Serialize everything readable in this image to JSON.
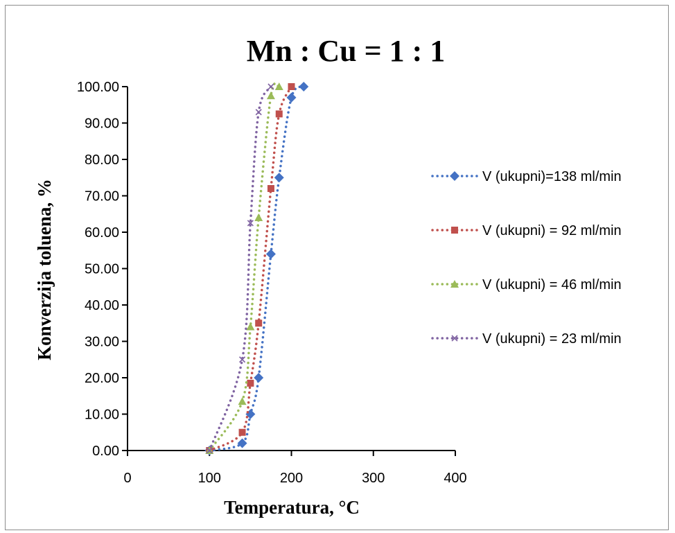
{
  "chart_data": {
    "type": "scatter",
    "title": "Mn : Cu = 1 : 1",
    "xlabel": "Temperatura, °C",
    "ylabel": "Konverzija toluena, %",
    "xlim": [
      0,
      400
    ],
    "ylim": [
      0,
      100
    ],
    "x_ticks": [
      "0",
      "100",
      "200",
      "300",
      "400"
    ],
    "y_ticks": [
      "0.00",
      "10.00",
      "20.00",
      "30.00",
      "40.00",
      "50.00",
      "60.00",
      "70.00",
      "80.00",
      "90.00",
      "100.00"
    ],
    "grid": false,
    "legend_position": "right",
    "series": [
      {
        "name": "V (ukupni)=138 ml/min",
        "color": "#4472C4",
        "marker": "diamond",
        "points": [
          [
            100,
            0
          ],
          [
            140,
            2
          ],
          [
            150,
            10
          ],
          [
            160,
            20
          ],
          [
            175,
            54
          ],
          [
            185,
            75
          ],
          [
            200,
            97
          ],
          [
            215,
            100
          ]
        ]
      },
      {
        "name": "V (ukupni) = 92 ml/min",
        "color": "#C0504D",
        "marker": "square",
        "points": [
          [
            100,
            0
          ],
          [
            140,
            5
          ],
          [
            150,
            18.5
          ],
          [
            160,
            35
          ],
          [
            175,
            72
          ],
          [
            185,
            92.5
          ],
          [
            200,
            100
          ]
        ]
      },
      {
        "name": "V (ukupni) = 46 ml/min",
        "color": "#9BBB59",
        "marker": "triangle",
        "points": [
          [
            100,
            0
          ],
          [
            140,
            13.5
          ],
          [
            150,
            34
          ],
          [
            160,
            64
          ],
          [
            175,
            97.5
          ],
          [
            185,
            100
          ]
        ]
      },
      {
        "name": "V (ukupni) = 23 ml/min",
        "color": "#8064A2",
        "marker": "x",
        "points": [
          [
            100,
            0
          ],
          [
            140,
            25
          ],
          [
            150,
            62.5
          ],
          [
            160,
            93
          ],
          [
            175,
            100
          ]
        ]
      }
    ]
  }
}
